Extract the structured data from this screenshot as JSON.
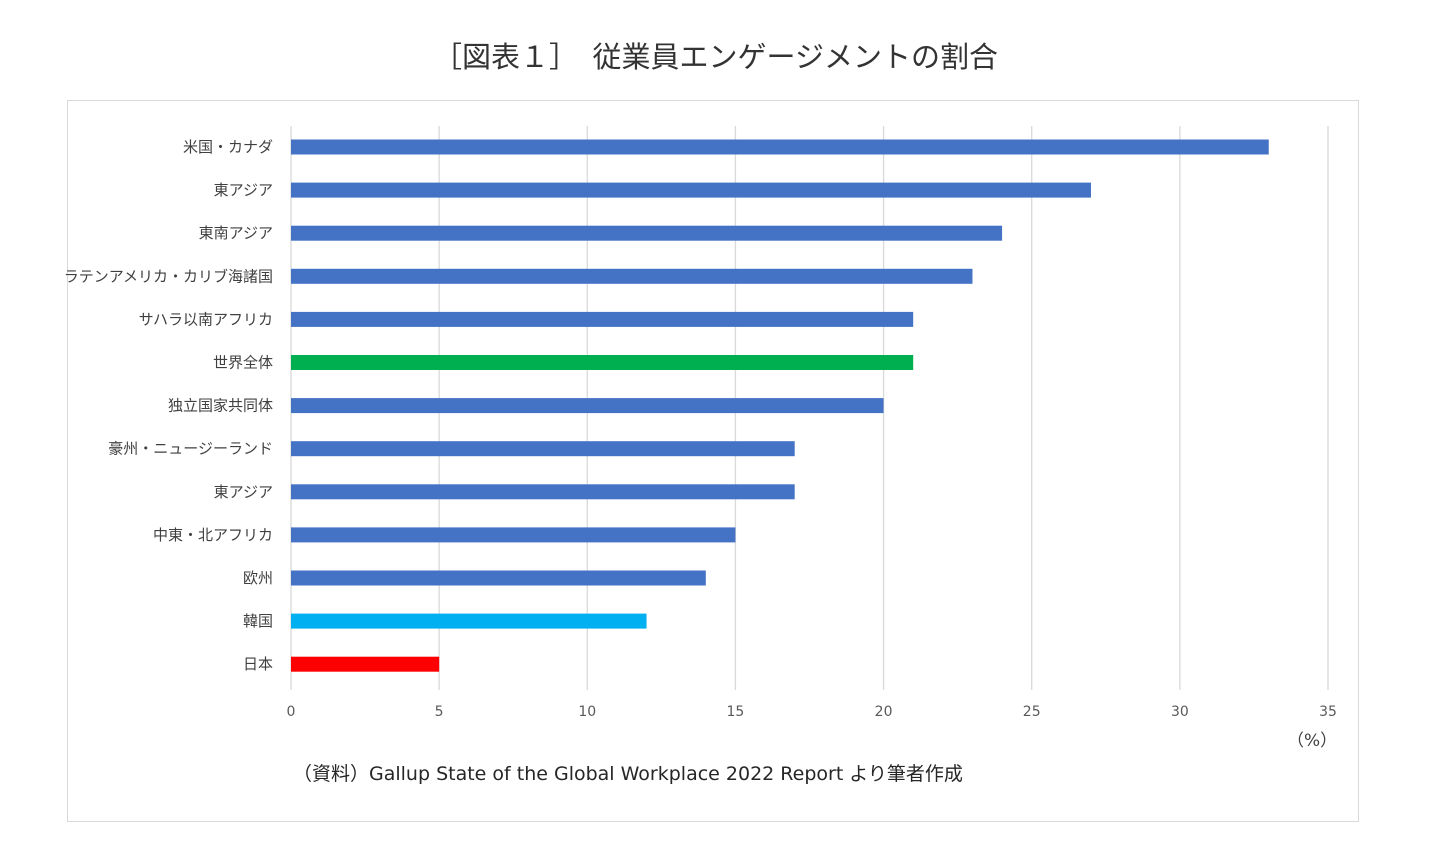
{
  "title": "［図表１］　従業員エンゲージメントの割合",
  "unit_label": "（%）",
  "source": "（資料）Gallup  State of the Global Workplace 2022 Report より筆者作成",
  "colors": {
    "default": "#4472C4",
    "world": "#00B050",
    "korea": "#00B0F0",
    "japan": "#FF0000",
    "grid": "#d9d9d9"
  },
  "chart_data": {
    "type": "bar",
    "orientation": "horizontal",
    "categories": [
      "米国・カナダ",
      "東アジア",
      "東南アジア",
      "ラテンアメリカ・カリブ海諸国",
      "サハラ以南アフリカ",
      "世界全体",
      "独立国家共同体",
      "豪州・ニュージーランド",
      "東アジア",
      "中東・北アフリカ",
      "欧州",
      "韓国",
      "日本"
    ],
    "values": [
      33,
      27,
      24,
      23,
      21,
      21,
      20,
      17,
      17,
      15,
      14,
      12,
      5
    ],
    "bar_colors": [
      "#4472C4",
      "#4472C4",
      "#4472C4",
      "#4472C4",
      "#4472C4",
      "#00B050",
      "#4472C4",
      "#4472C4",
      "#4472C4",
      "#4472C4",
      "#4472C4",
      "#00B0F0",
      "#FF0000"
    ],
    "xlim": [
      0,
      35
    ],
    "xticks": [
      0,
      5,
      10,
      15,
      20,
      25,
      30,
      35
    ],
    "grid": true,
    "legend": "none"
  }
}
